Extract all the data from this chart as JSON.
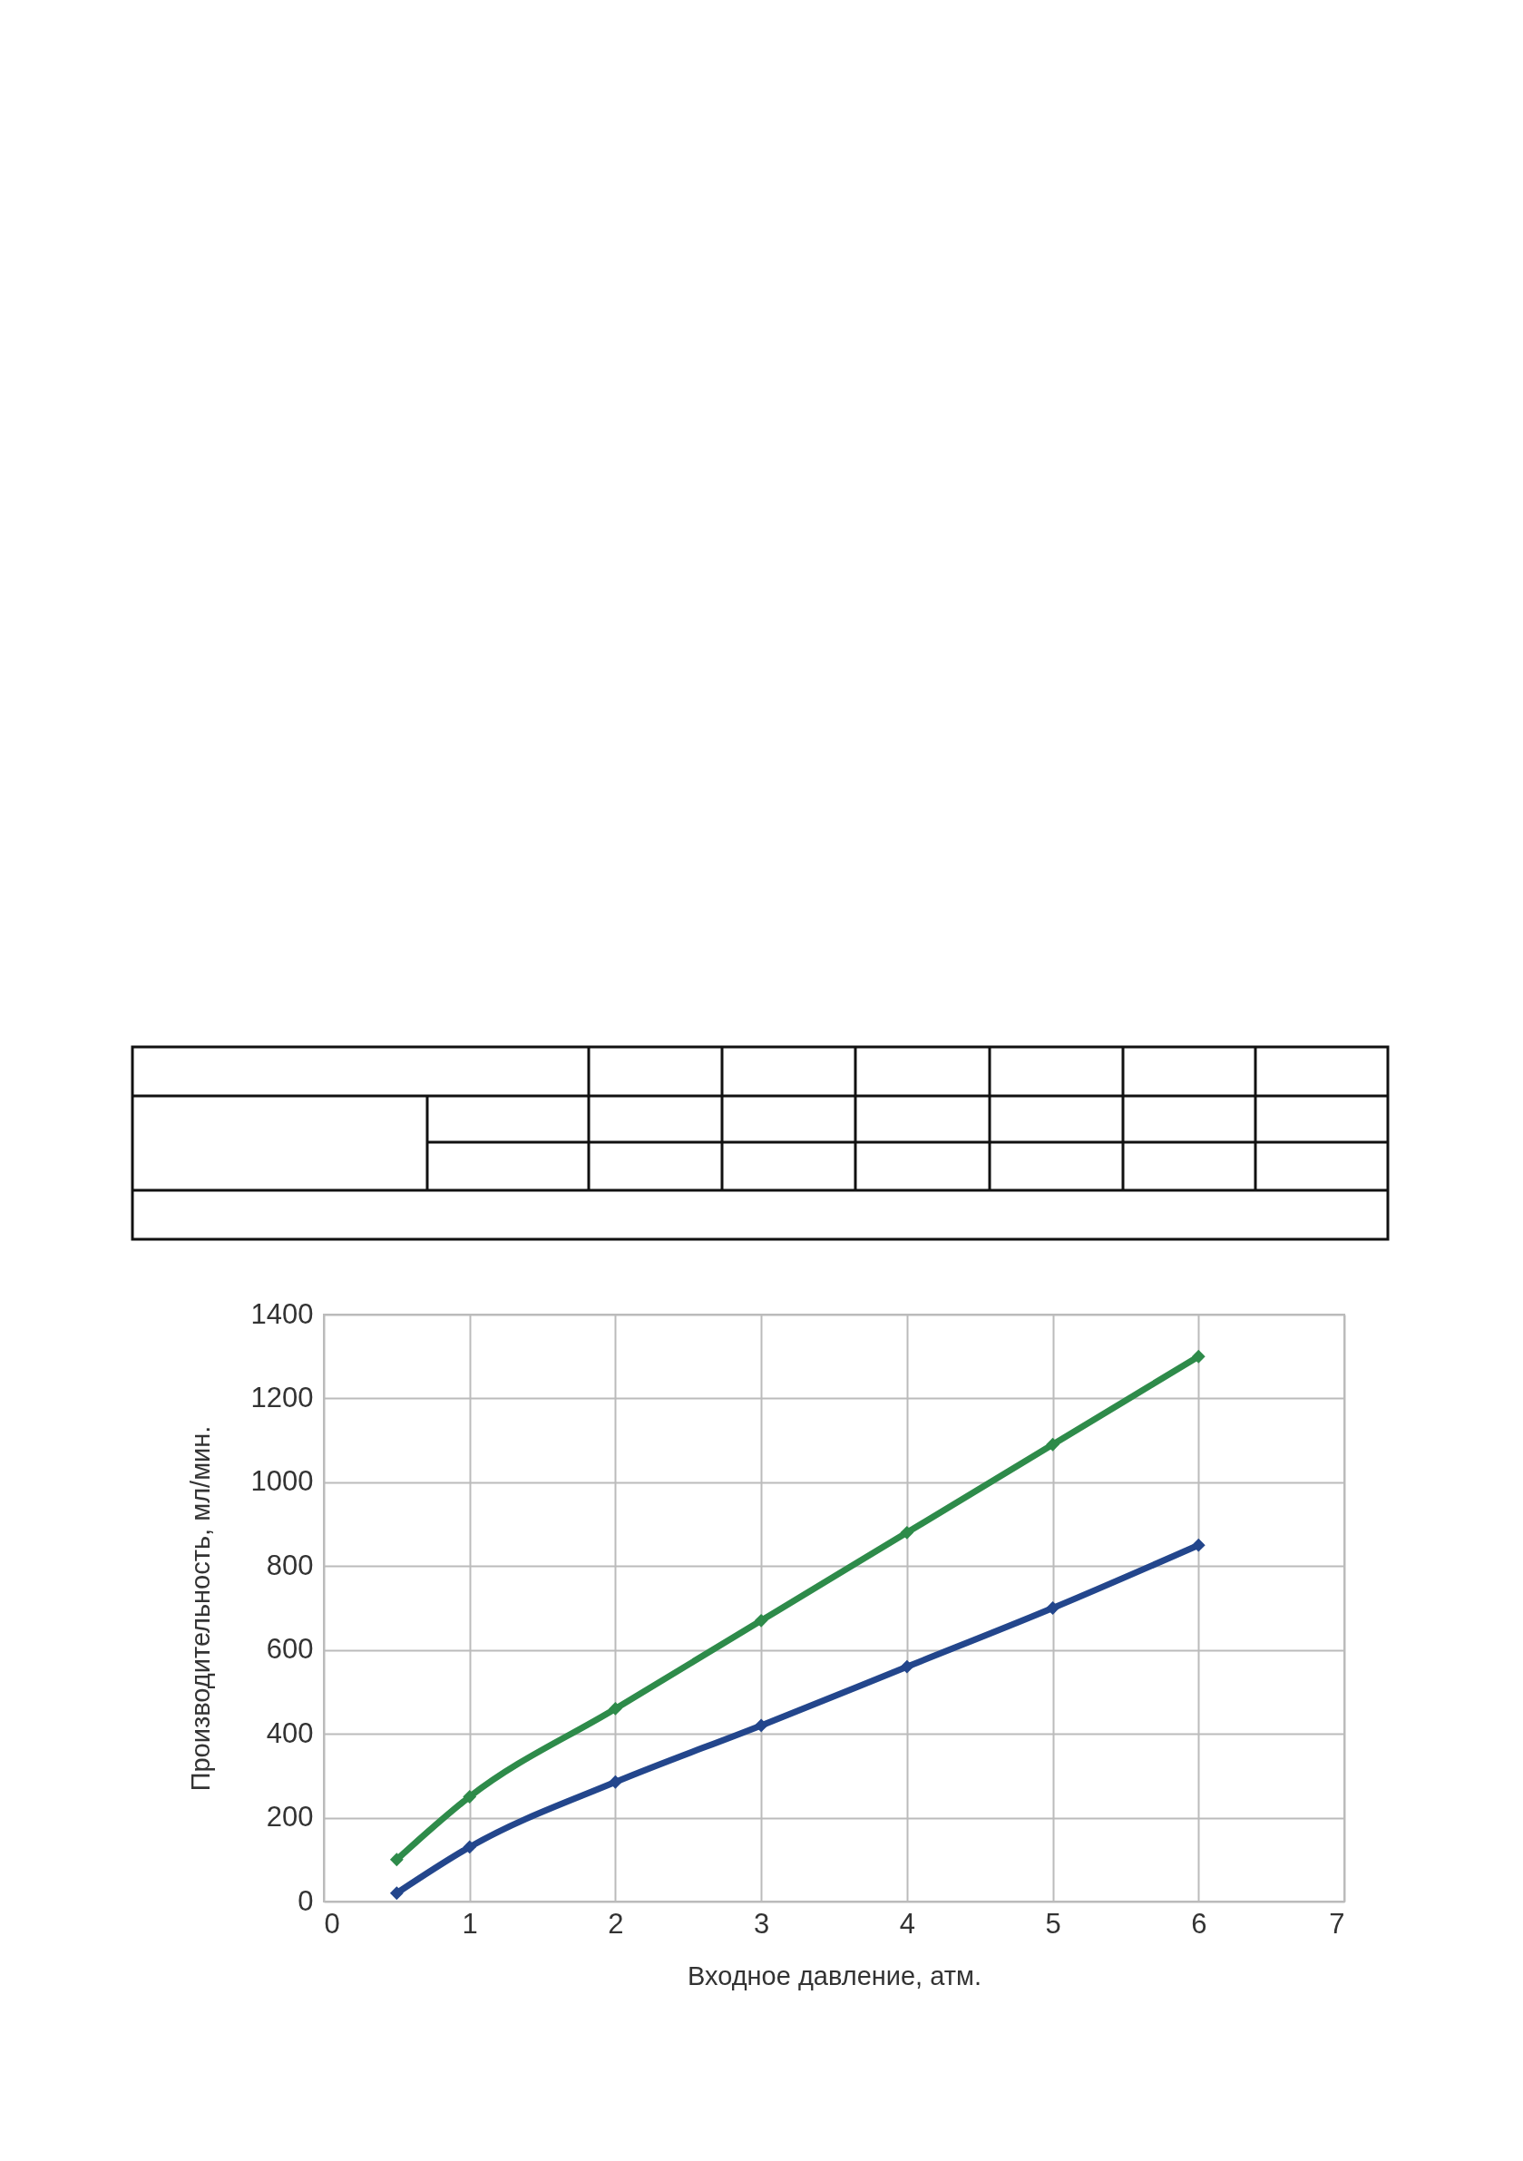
{
  "chart_data": {
    "type": "line",
    "xlabel": "Входное давление, атм.",
    "ylabel": "Производительность, мл/мин.",
    "x": [
      0.5,
      1,
      2,
      3,
      4,
      5,
      6
    ],
    "series": [
      {
        "color": "#2e8b4a",
        "values": [
          100,
          250,
          460,
          670,
          880,
          1090,
          1300
        ]
      },
      {
        "color": "#23468c",
        "values": [
          20,
          130,
          285,
          420,
          560,
          700,
          850
        ]
      }
    ],
    "xlim": [
      0,
      7
    ],
    "xticks": [
      0,
      1,
      2,
      3,
      4,
      5,
      6,
      7
    ],
    "ylim": [
      0,
      1400
    ],
    "yticks": [
      0,
      200,
      400,
      600,
      800,
      1000,
      1200,
      1400
    ],
    "grid": true,
    "marker": "diamond",
    "line_style": "solid"
  }
}
